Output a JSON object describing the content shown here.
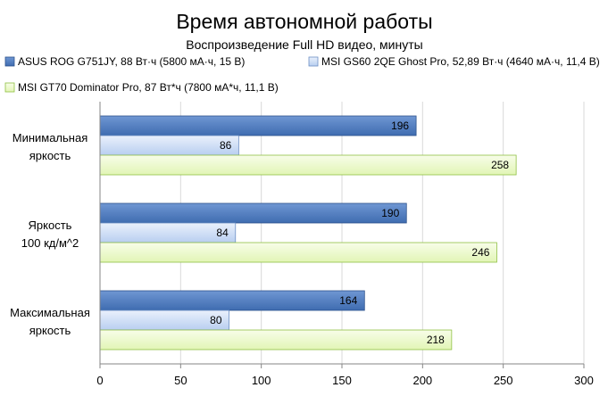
{
  "chart_data": {
    "type": "bar",
    "orientation": "horizontal",
    "title": "Время автономной работы",
    "subtitle": "Воспроизведение  Full HD видео, минуты",
    "categories": [
      "Минимальная яркость",
      "Яркость 100 кд/м^2",
      "Максимальная яркость"
    ],
    "category_lines": [
      [
        "Минимальная",
        "яркость"
      ],
      [
        "Яркость",
        "100 кд/м^2"
      ],
      [
        "Максимальная",
        "яркость"
      ]
    ],
    "series": [
      {
        "name": "ASUS ROG G751JY, 88 Вт·ч (5800 мА·ч, 15 В)",
        "values": [
          196,
          190,
          164
        ],
        "color": "#3f6cb0",
        "colorLight": "#6f97d3",
        "stroke": "#2d528c"
      },
      {
        "name": "MSI GS60 2QE Ghost Pro, 52,89 Вт·ч (4640 мА·ч, 11,4 В)",
        "values": [
          86,
          84,
          80
        ],
        "color": "#b8cef0",
        "colorLight": "#eaf1fc",
        "stroke": "#6d8fc4"
      },
      {
        "name": "MSI GT70 Dominator Pro, 87 Вт*ч (7800 мА*ч, 11,1 В)",
        "values": [
          258,
          246,
          218
        ],
        "color": "#e2f5b5",
        "colorLight": "#f8fde9",
        "stroke": "#8fc043"
      }
    ],
    "xlim": [
      0,
      300
    ],
    "xticks": [
      "0",
      "50",
      "100",
      "150",
      "200",
      "250",
      "300"
    ],
    "grid": true,
    "legend_position": "top"
  }
}
